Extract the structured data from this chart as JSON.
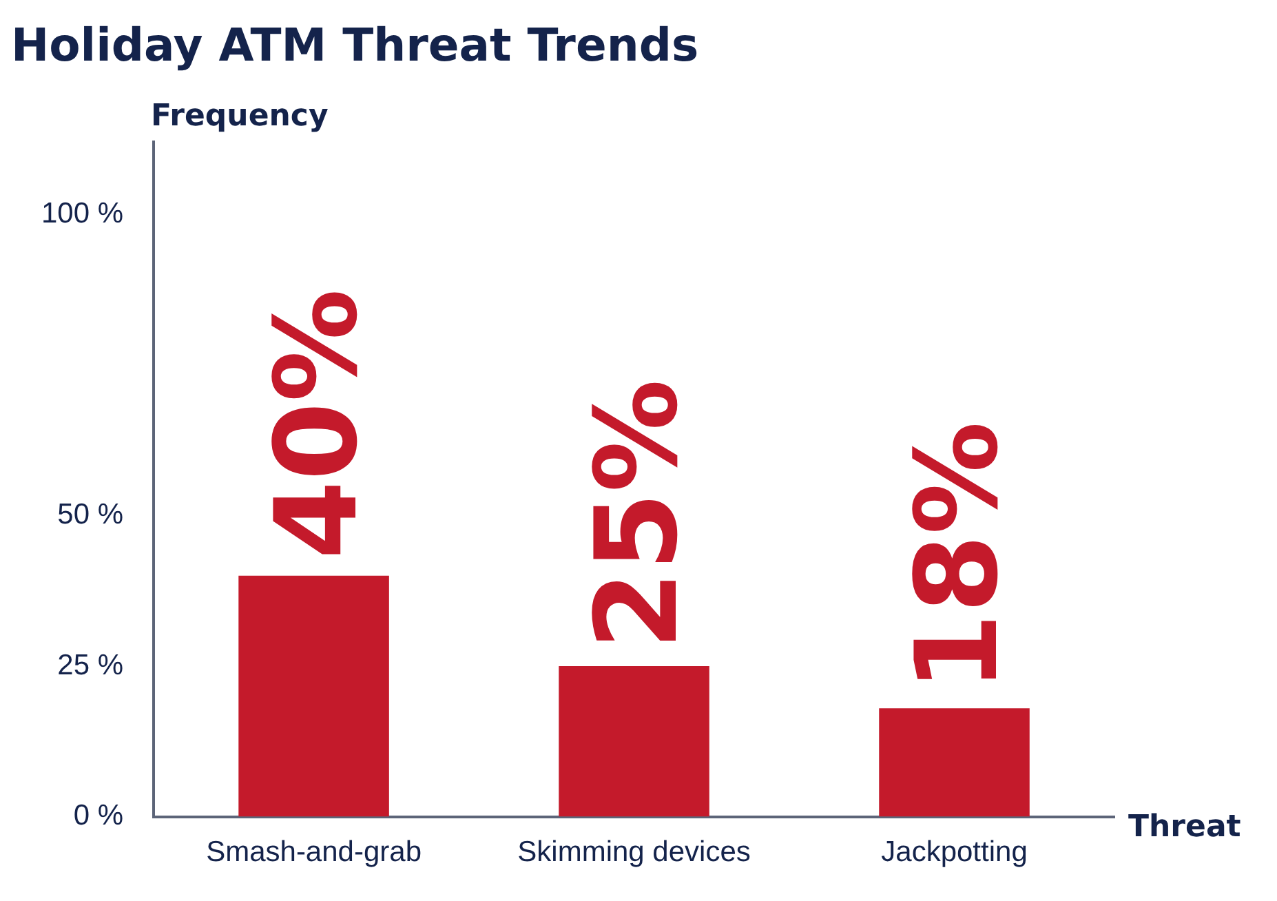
{
  "chart_data": {
    "type": "bar",
    "title": "Holiday ATM Threat Trends",
    "ylabel": "Frequency",
    "xlabel": "Threat",
    "categories": [
      "Smash-and-grab",
      "Skimming devices",
      "Jackpotting"
    ],
    "values": [
      40,
      25,
      18
    ],
    "value_labels": [
      "40%",
      "25%",
      "18%"
    ],
    "color": "#c41a2b",
    "ylim": [
      0,
      112
    ],
    "yticks": [
      {
        "value": 0,
        "label": "0 %"
      },
      {
        "value": 25,
        "label": "25 %"
      },
      {
        "value": 50,
        "label": "50 %"
      },
      {
        "value": 100,
        "label": "100 %"
      }
    ],
    "grid": false,
    "legend": false
  }
}
